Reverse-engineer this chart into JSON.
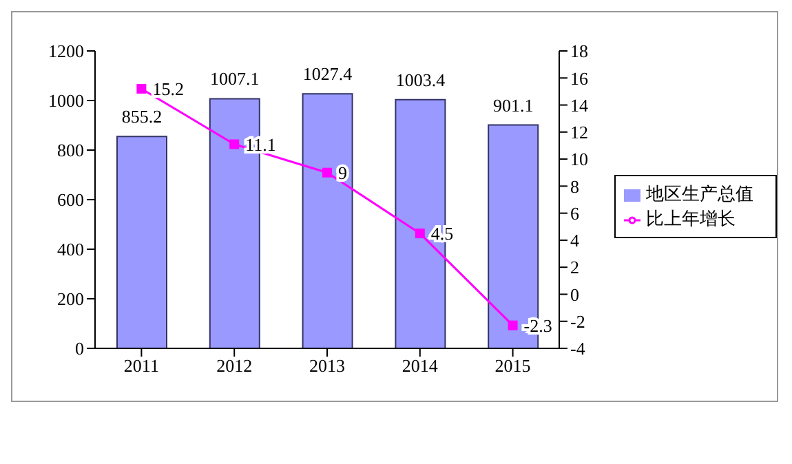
{
  "chart_data": {
    "type": "bar",
    "categories": [
      "2011",
      "2012",
      "2013",
      "2014",
      "2015"
    ],
    "series": [
      {
        "name": "地区生产总值",
        "color": "#9999ff",
        "values": [
          855.2,
          1007.1,
          1027.4,
          1003.4,
          901.1
        ]
      },
      {
        "name": "比上年增长",
        "type": "line",
        "axis": "y2",
        "color": "#ff00ff",
        "values": [
          15.2,
          11.1,
          9,
          4.5,
          -2.3
        ]
      }
    ],
    "ylim": [
      0,
      1200
    ],
    "yticks": [
      0,
      200,
      400,
      600,
      800,
      1000,
      1200
    ],
    "y2lim": [
      -4,
      18
    ],
    "y2ticks": [
      -4,
      -2,
      0,
      2,
      4,
      6,
      8,
      10,
      12,
      14,
      16,
      18
    ],
    "data_labels": true,
    "legend": "right",
    "marker": "square",
    "grid": false
  }
}
